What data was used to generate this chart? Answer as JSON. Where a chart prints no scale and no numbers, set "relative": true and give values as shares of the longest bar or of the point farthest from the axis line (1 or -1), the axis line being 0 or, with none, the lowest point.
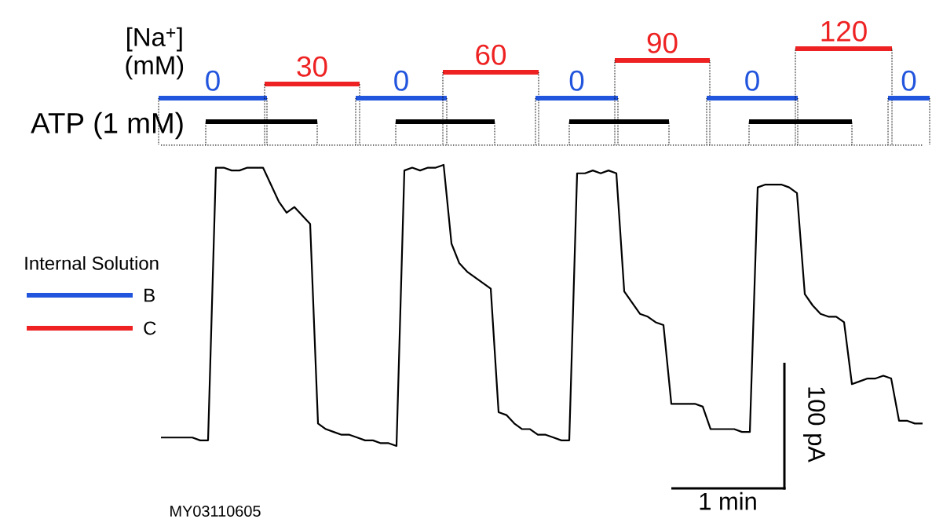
{
  "chart_data": {
    "type": "line",
    "relative": true,
    "categories": [
      null,
      null,
      null,
      null,
      null,
      null,
      null,
      null,
      null,
      null,
      null,
      null,
      null,
      null,
      null,
      null,
      null,
      null,
      null,
      null,
      null,
      null,
      null,
      null,
      null,
      null,
      null,
      null,
      null,
      null,
      null,
      null,
      null,
      null,
      null,
      null,
      null,
      null,
      null,
      null,
      null,
      null,
      null,
      null,
      null,
      null,
      null,
      null,
      null,
      null,
      null,
      null,
      null,
      null,
      null,
      null,
      null,
      null,
      null,
      null,
      null,
      null,
      null,
      null,
      null,
      null,
      null,
      null,
      null,
      null,
      null,
      null,
      null,
      null,
      null,
      null,
      null,
      null,
      null,
      null,
      null,
      null,
      null,
      null,
      null,
      null,
      null,
      null,
      null,
      null,
      null,
      null,
      null,
      null,
      null,
      null,
      null,
      null
    ],
    "series": [
      {
        "color": "#000000",
        "values": [
          0.03,
          0.03,
          0.03,
          0.03,
          0.03,
          0.02,
          0.02,
          0.99,
          0.99,
          0.98,
          0.98,
          0.99,
          0.99,
          0.99,
          0.93,
          0.87,
          0.83,
          0.85,
          0.82,
          0.79,
          0.08,
          0.06,
          0.05,
          0.04,
          0.04,
          0.03,
          0.02,
          0.02,
          0.01,
          0.01,
          0,
          0.98,
          0.99,
          0.98,
          0.99,
          0.99,
          1,
          0.72,
          0.65,
          0.62,
          0.6,
          0.58,
          0.56,
          0.12,
          0.11,
          0.08,
          0.06,
          0.06,
          0.04,
          0.04,
          0.03,
          0.02,
          0.02,
          0.97,
          0.97,
          0.98,
          0.97,
          0.98,
          0.97,
          0.55,
          0.51,
          0.47,
          0.46,
          0.44,
          0.43,
          0.15,
          0.15,
          0.15,
          0.15,
          0.14,
          0.06,
          0.06,
          0.06,
          0.06,
          0.05,
          0.05,
          0.92,
          0.93,
          0.93,
          0.93,
          0.92,
          0.9,
          0.54,
          0.5,
          0.47,
          0.46,
          0.46,
          0.44,
          0.22,
          0.23,
          0.24,
          0.24,
          0.25,
          0.24,
          0.09,
          0.09,
          0.08,
          0.08
        ]
      }
    ],
    "legend_title": "Internal Solution",
    "ref_lines": [
      {
        "axis": "y",
        "value": 1.07,
        "line_style": "dotted",
        "color": "#000000"
      }
    ],
    "annotations": [
      "[Na$^{+}$] (mM)",
      "ATP (1 mM)",
      "B",
      "C",
      "1 min",
      "100 pA",
      "MY03110605",
      "0",
      "30",
      "0",
      "60",
      "0",
      "90",
      "0",
      "120",
      "0"
    ]
  }
}
